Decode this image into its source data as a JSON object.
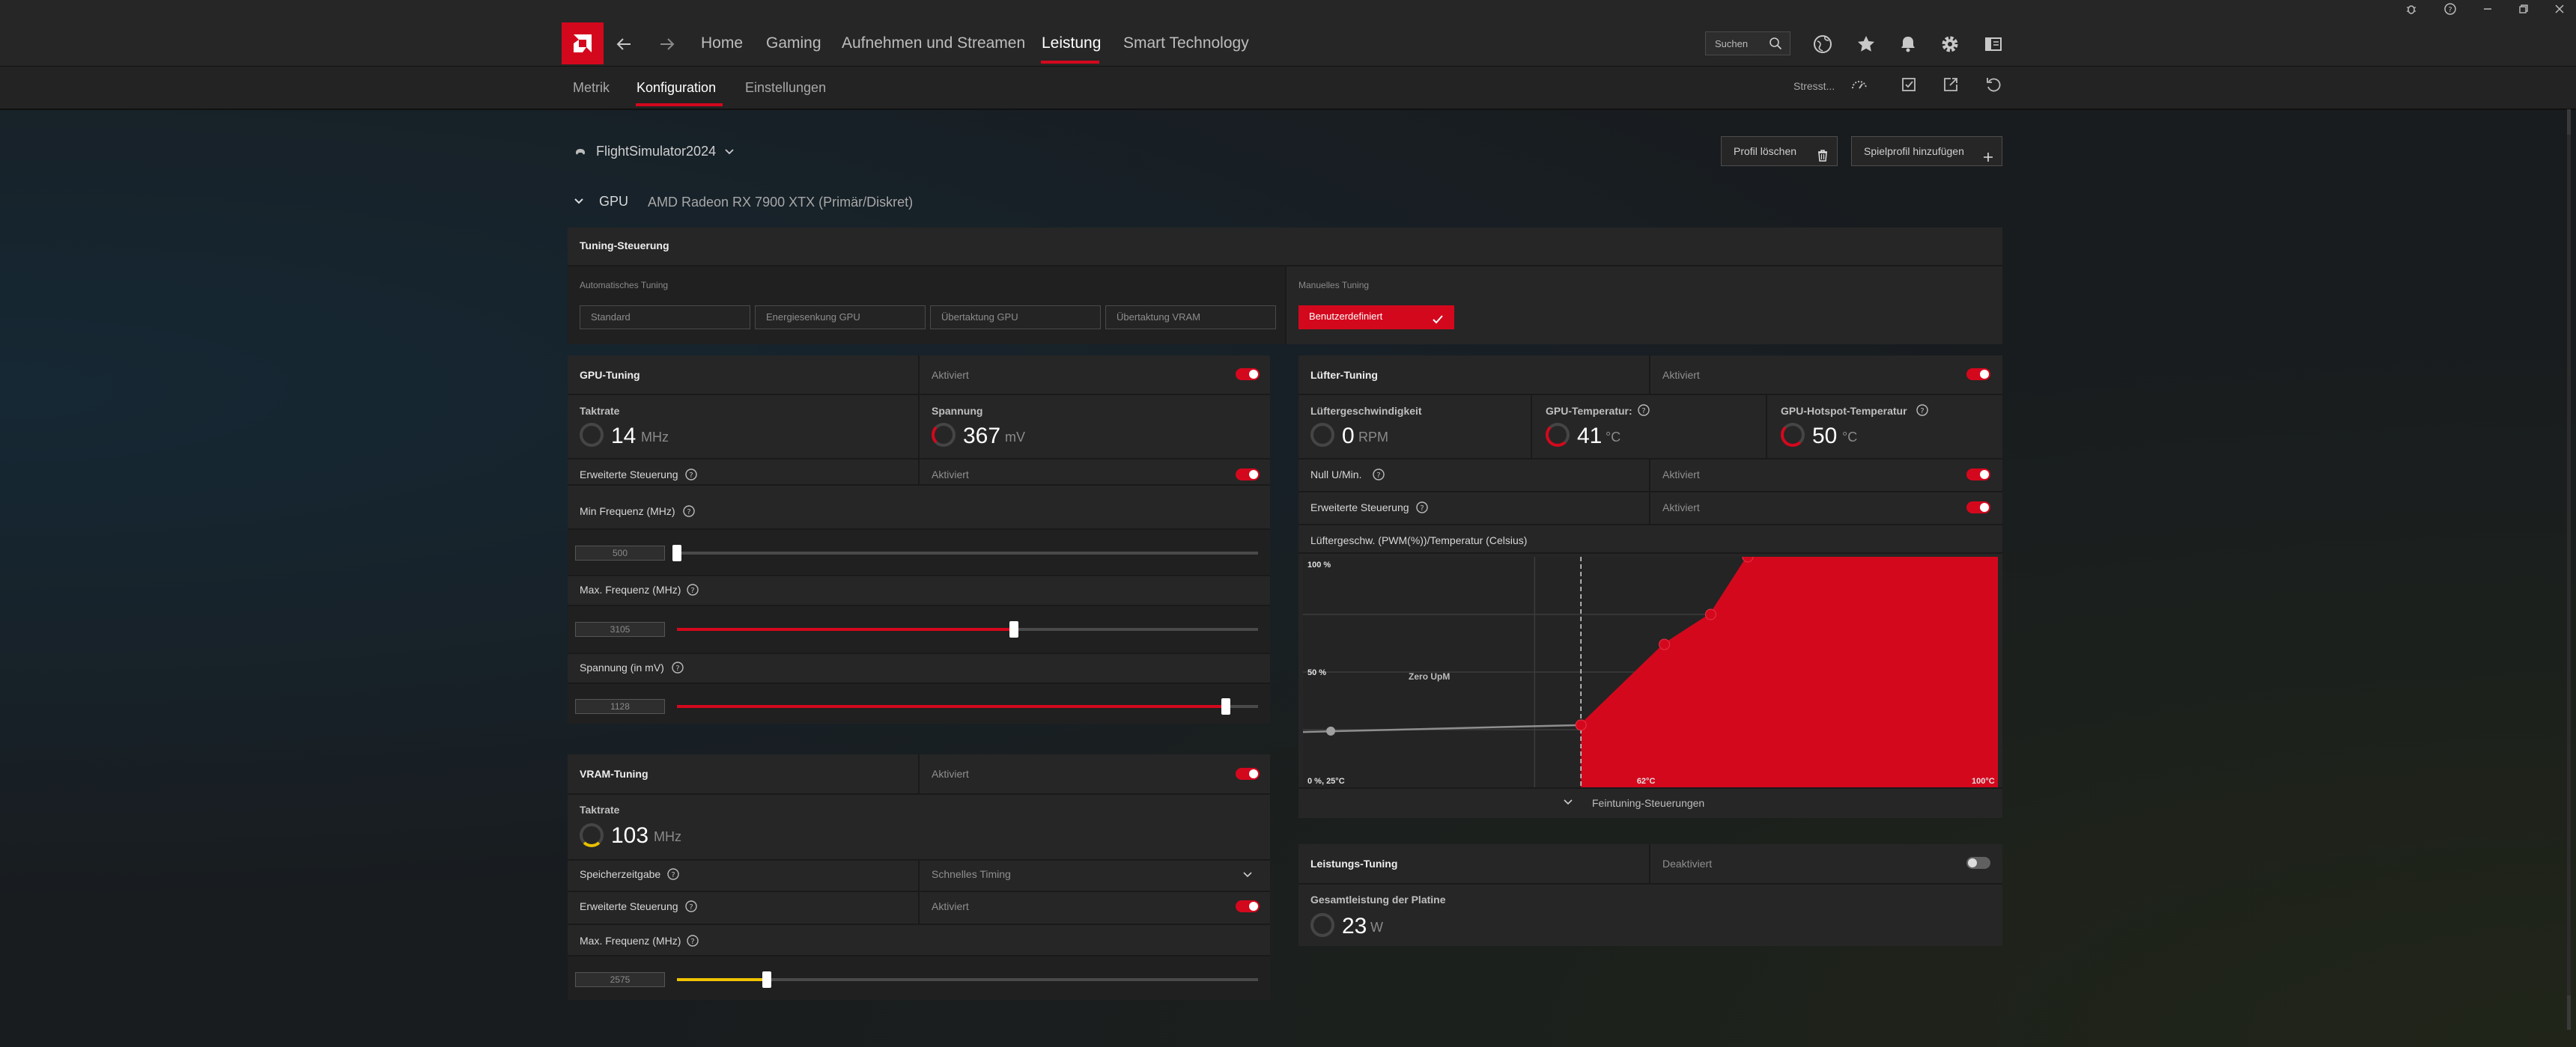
{
  "app": {
    "nav": {
      "items": [
        "Home",
        "Gaming",
        "Aufnehmen und Streamen",
        "Leistung",
        "Smart Technology"
      ],
      "active_index": 3
    },
    "search": {
      "placeholder": "Suchen"
    },
    "subnav": {
      "items": [
        "Metrik",
        "Konfiguration",
        "Einstellungen"
      ],
      "active_index": 1,
      "stress_label": "Stresst..."
    },
    "colors": {
      "accent": "#d4081d",
      "highlight": "#f0c300"
    },
    "icons": [
      "back-icon",
      "forward-icon",
      "search-icon",
      "globe-icon",
      "star-icon",
      "bell-icon",
      "gear-icon",
      "sidebar-icon",
      "gauge-icon",
      "export-icon",
      "share-icon",
      "reset-icon",
      "bug-icon",
      "help-icon",
      "minimize-icon",
      "restore-icon",
      "close-icon"
    ]
  },
  "profile": {
    "name": "FlightSimulator2024",
    "delete_label": "Profil löschen",
    "add_label": "Spielprofil hinzufügen"
  },
  "gpu": {
    "header": "GPU",
    "name": "AMD Radeon RX 7900 XTX (Primär/Diskret)"
  },
  "tuning_control": {
    "title": "Tuning-Steuerung",
    "auto_label": "Automatisches Tuning",
    "auto_options": [
      "Standard",
      "Energiesenkung GPU",
      "Übertaktung GPU",
      "Übertaktung VRAM"
    ],
    "manual_label": "Manuelles Tuning",
    "manual_option": "Benutzerdefiniert"
  },
  "gpu_tuning": {
    "title": "GPU-Tuning",
    "status": "Aktiviert",
    "enabled": true,
    "clock": {
      "label": "Taktrate",
      "value": "14",
      "unit": "MHz"
    },
    "voltage": {
      "label": "Spannung",
      "value": "367",
      "unit": "mV"
    },
    "advanced": {
      "label": "Erweiterte Steuerung",
      "status": "Aktiviert",
      "enabled": true
    },
    "min_freq": {
      "label": "Min Frequenz (MHz)",
      "value": "500",
      "fraction": 0.0
    },
    "max_freq": {
      "label": "Max. Frequenz (MHz)",
      "value": "3105",
      "fraction": 0.58
    },
    "voltage_setting": {
      "label": "Spannung (in mV)",
      "value": "1128",
      "fraction": 0.945
    }
  },
  "vram_tuning": {
    "title": "VRAM-Tuning",
    "status": "Aktiviert",
    "enabled": true,
    "clock": {
      "label": "Taktrate",
      "value": "103",
      "unit": "MHz"
    },
    "memory_timing": {
      "label": "Speicherzeitgabe",
      "value": "Schnelles Timing"
    },
    "advanced": {
      "label": "Erweiterte Steuerung",
      "status": "Aktiviert",
      "enabled": true
    },
    "max_freq": {
      "label": "Max. Frequenz (MHz)",
      "value": "2575",
      "fraction": 0.155
    }
  },
  "fan_tuning": {
    "title": "Lüfter-Tuning",
    "status": "Aktiviert",
    "enabled": true,
    "fan_speed": {
      "label": "Lüftergeschwindigkeit",
      "value": "0",
      "unit": "RPM"
    },
    "gpu_temp": {
      "label": "GPU-Temperatur:",
      "value": "41",
      "unit": "°C"
    },
    "hotspot_temp": {
      "label": "GPU-Hotspot-Temperatur",
      "value": "50",
      "unit": "°C"
    },
    "zero_rpm": {
      "label": "Null U/Min.",
      "status": "Aktiviert",
      "enabled": true
    },
    "advanced": {
      "label": "Erweiterte Steuerung",
      "status": "Aktiviert",
      "enabled": true
    },
    "curve_title": "Lüftergeschw. (PWM(%))/Temperatur (Celsius)",
    "fine_tune_label": "Feintuning-Steuerungen"
  },
  "power_tuning": {
    "title": "Leistungs-Tuning",
    "status": "Deaktiviert",
    "enabled": false,
    "board_power": {
      "label": "Gesamtleistung der Platine",
      "value": "23",
      "unit": "W"
    }
  },
  "chart_data": {
    "type": "area",
    "title": "Lüftergeschw. (PWM(%))/Temperatur (Celsius)",
    "xlim": [
      25,
      100
    ],
    "ylim": [
      0,
      100
    ],
    "x_tick_labels": [
      "62°C",
      "100°C"
    ],
    "y_tick_labels": [
      "100 %",
      "50 %",
      "0 %, 25°C"
    ],
    "zero_rpm_label": "Zero UpM",
    "zero_rpm_threshold": 55,
    "idle_line": [
      [
        25,
        24
      ],
      [
        55,
        27
      ]
    ],
    "curve_points": [
      [
        55,
        27
      ],
      [
        64,
        62
      ],
      [
        69,
        75
      ],
      [
        73,
        100
      ]
    ],
    "grid": true
  }
}
